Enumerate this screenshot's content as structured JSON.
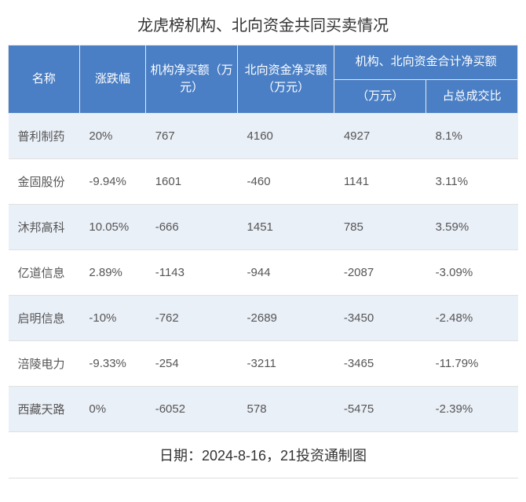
{
  "title": "龙虎榜机构、北向资金共同买卖情况",
  "header": {
    "name": "名称",
    "change_pct": "涨跌幅",
    "inst_net": "机构净买额（万元）",
    "north_net": "北向资金净买额（万元）",
    "combined_group": "机构、北向资金合计净买额",
    "combined_amount": "（万元）",
    "combined_ratio": "占总成交比"
  },
  "rows": [
    {
      "name": "普利制药",
      "change_pct": "20%",
      "inst_net": "767",
      "north_net": "4160",
      "total": "4927",
      "ratio": "8.1%"
    },
    {
      "name": "金固股份",
      "change_pct": "-9.94%",
      "inst_net": "1601",
      "north_net": "-460",
      "total": "1141",
      "ratio": "3.11%"
    },
    {
      "name": "沐邦高科",
      "change_pct": "10.05%",
      "inst_net": "-666",
      "north_net": "1451",
      "total": "785",
      "ratio": "3.59%"
    },
    {
      "name": "亿道信息",
      "change_pct": "2.89%",
      "inst_net": "-1143",
      "north_net": "-944",
      "total": "-2087",
      "ratio": "-3.09%"
    },
    {
      "name": "启明信息",
      "change_pct": "-10%",
      "inst_net": "-762",
      "north_net": "-2689",
      "total": "-3450",
      "ratio": "-2.48%"
    },
    {
      "name": "涪陵电力",
      "change_pct": "-9.33%",
      "inst_net": "-254",
      "north_net": "-3211",
      "total": "-3465",
      "ratio": "-11.79%"
    },
    {
      "name": "西藏天路",
      "change_pct": "0%",
      "inst_net": "-6052",
      "north_net": "578",
      "total": "-5475",
      "ratio": "-2.39%"
    }
  ],
  "footer": "日期：2024-8-16，21投资通制图",
  "styling": {
    "header_bg": "#4a7fc5",
    "header_text_color": "#ffffff",
    "odd_row_bg": "#eaf0f8",
    "even_row_bg": "#ffffff",
    "border_color": "#e0e0e0",
    "text_color": "#555",
    "title_fontsize": 20,
    "header_fontsize": 15,
    "cell_fontsize": 15,
    "footer_fontsize": 18
  }
}
